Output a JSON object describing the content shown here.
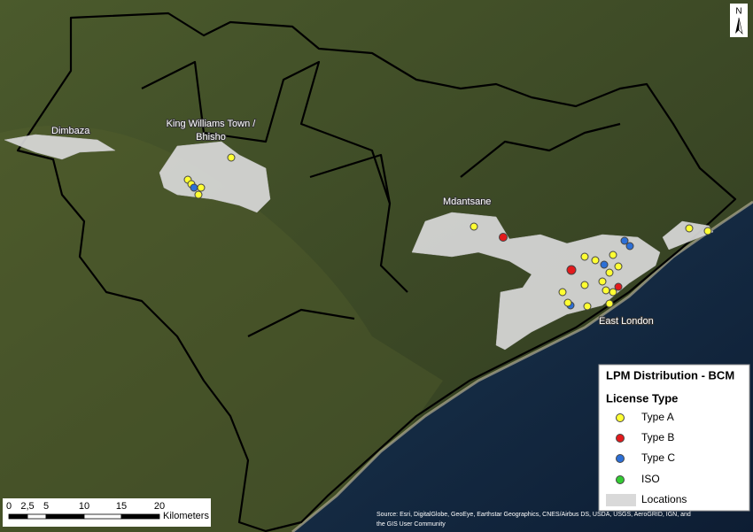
{
  "map": {
    "places": [
      {
        "lines": [
          "Dimbaza"
        ]
      },
      {
        "lines": [
          "King Williams Town /",
          "Bhisho"
        ]
      },
      {
        "lines": [
          "Mdantsane"
        ]
      },
      {
        "lines": [
          "East London"
        ]
      }
    ],
    "north_arrow": "N",
    "legend": {
      "title": "LPM Distribution - BCM",
      "subtitle": "License Type",
      "items": [
        {
          "label": "Type A",
          "color": "#ffff33",
          "marker": "circle"
        },
        {
          "label": "Type B",
          "color": "#e31a1c",
          "marker": "circle"
        },
        {
          "label": "Type C",
          "color": "#2c6fd6",
          "marker": "circle"
        },
        {
          "label": "ISO",
          "color": "#33cc33",
          "marker": "circle"
        },
        {
          "label": "Locations",
          "color": "#d9d9d9",
          "marker": "rect"
        }
      ]
    },
    "scale_bar": {
      "labels": [
        "0",
        "2,5",
        "5",
        "10",
        "15",
        "20"
      ],
      "unit": "Kilometers"
    },
    "source": [
      "Source: Esri, DigitalGlobe, GeoEye, Earthstar Geographics, CNES/Airbus DS, USDA, USGS, AeroGRID, IGN, and",
      "the GIS User Community"
    ]
  }
}
